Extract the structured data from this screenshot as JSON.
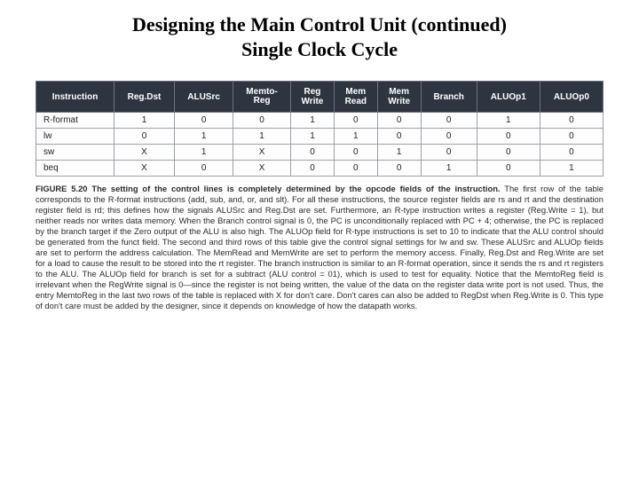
{
  "title_line1": "Designing the Main Control Unit (continued)",
  "title_line2": "Single Clock Cycle",
  "table": {
    "header_bg": "#2d3540",
    "header_fg": "#ffffff",
    "border_color": "#9ba1a7",
    "columns": [
      "Instruction",
      "Reg.Dst",
      "ALUSrc",
      "Memto-\nReg",
      "Reg\nWrite",
      "Mem\nRead",
      "Mem\nWrite",
      "Branch",
      "ALUOp1",
      "ALUOp0"
    ],
    "rows": [
      [
        "R-format",
        "1",
        "0",
        "0",
        "1",
        "0",
        "0",
        "0",
        "1",
        "0"
      ],
      [
        "lw",
        "0",
        "1",
        "1",
        "1",
        "1",
        "0",
        "0",
        "0",
        "0"
      ],
      [
        "sw",
        "X",
        "1",
        "X",
        "0",
        "0",
        "1",
        "0",
        "0",
        "0"
      ],
      [
        "beq",
        "X",
        "0",
        "X",
        "0",
        "0",
        "0",
        "1",
        "0",
        "1"
      ]
    ]
  },
  "caption": {
    "lead": "FIGURE 5.20  The setting of the control lines is completely determined by the opcode fields of the instruction.",
    "body": "The first row of the table corresponds to the R-format instructions (add, sub, and, or, and slt). For all these instructions, the source register fields are rs and rt and the destination register field is rd; this defines how the signals ALUSrc and Reg.Dst are set. Furthermore, an R-type instruction writes a register (Reg.Write = 1), but neither reads nor writes data memory. When the Branch control signal is 0, the PC is unconditionally replaced with PC + 4; otherwise, the PC is replaced by the branch target if the Zero output of the ALU is also high. The ALUOp field for R-type instructions is set to 10 to indicate that the ALU control should be generated from the funct field. The second and third rows of this table give the control signal settings for lw and sw. These ALUSrc and ALUOp fields are set to perform the address calculation. The MemRead and MemWrite are set to perform the memory access. Finally, Reg.Dst and Reg.Write are set for a load to cause the result to be stored into the rt register. The branch instruction is similar to an R-format operation, since it sends the rs and rt registers to the ALU. The ALUOp field for branch is set for a subtract (ALU control = 01), which is used to test for equality. Notice that the MemtoReg field is irrelevant when the RegWrite signal is 0—since the register is not being written, the value of the data on the register data write port is not used. Thus, the entry MemtoReg in the last two rows of the table is replaced with X for don't care. Don't cares can also be added to RegDst when Reg.Write is 0. This type of don't care must be added by the designer, since it depends on knowledge of how the datapath works."
  }
}
